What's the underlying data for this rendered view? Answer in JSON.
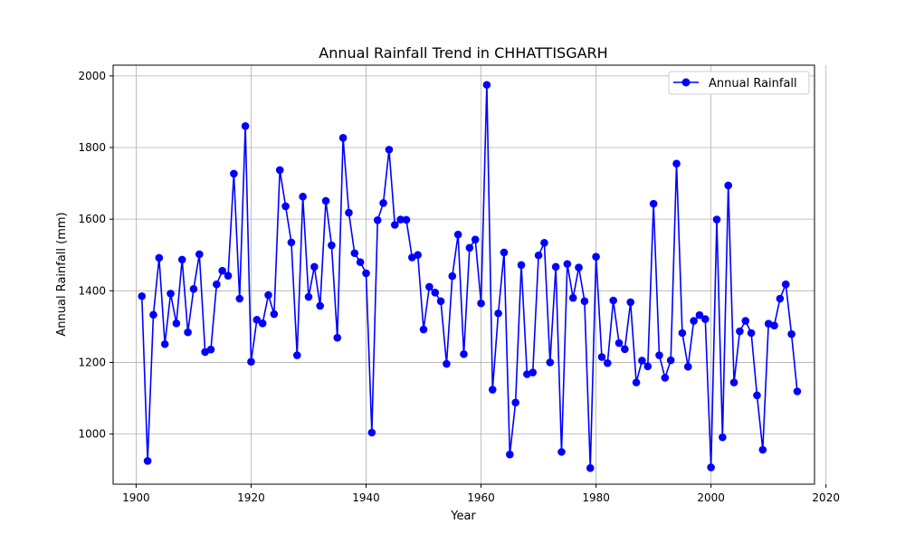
{
  "chart_data": {
    "type": "line",
    "title": "Annual Rainfall Trend in CHHATTISGARH",
    "xlabel": "Year",
    "ylabel": "Annual Rainfall (mm)",
    "xlim": [
      1896,
      2018
    ],
    "ylim": [
      860,
      2030
    ],
    "xticks": [
      1900,
      1920,
      1940,
      1960,
      1980,
      2000,
      2020
    ],
    "yticks": [
      1000,
      1200,
      1400,
      1600,
      1800,
      2000
    ],
    "grid": true,
    "legend_position": "top-right",
    "series": [
      {
        "name": "Annual Rainfall",
        "color": "#0000ff",
        "marker": "circle",
        "x": [
          1901,
          1902,
          1903,
          1904,
          1905,
          1906,
          1907,
          1908,
          1909,
          1910,
          1911,
          1912,
          1913,
          1914,
          1915,
          1916,
          1917,
          1918,
          1919,
          1920,
          1921,
          1922,
          1923,
          1924,
          1925,
          1926,
          1927,
          1928,
          1929,
          1930,
          1931,
          1932,
          1933,
          1934,
          1935,
          1936,
          1937,
          1938,
          1939,
          1940,
          1941,
          1942,
          1943,
          1944,
          1945,
          1946,
          1947,
          1948,
          1949,
          1950,
          1951,
          1952,
          1953,
          1954,
          1955,
          1956,
          1957,
          1958,
          1959,
          1960,
          1961,
          1962,
          1963,
          1964,
          1965,
          1966,
          1967,
          1968,
          1969,
          1970,
          1971,
          1972,
          1973,
          1974,
          1975,
          1976,
          1977,
          1978,
          1979,
          1980,
          1981,
          1982,
          1983,
          1984,
          1985,
          1986,
          1987,
          1988,
          1989,
          1990,
          1991,
          1992,
          1993,
          1994,
          1995,
          1996,
          1997,
          1998,
          1999,
          2000,
          2001,
          2002,
          2003,
          2004,
          2005,
          2006,
          2007,
          2008,
          2009,
          2010,
          2011,
          2012,
          2013,
          2014,
          2015
        ],
        "y": [
          1385,
          925,
          1333,
          1492,
          1251,
          1392,
          1309,
          1487,
          1284,
          1405,
          1502,
          1229,
          1236,
          1418,
          1456,
          1442,
          1727,
          1378,
          1860,
          1202,
          1319,
          1309,
          1388,
          1335,
          1737,
          1636,
          1535,
          1220,
          1663,
          1383,
          1467,
          1358,
          1651,
          1527,
          1269,
          1827,
          1618,
          1505,
          1480,
          1449,
          1004,
          1597,
          1645,
          1794,
          1584,
          1599,
          1598,
          1493,
          1500,
          1292,
          1411,
          1395,
          1371,
          1196,
          1441,
          1557,
          1223,
          1520,
          1543,
          1365,
          1975,
          1124,
          1337,
          1507,
          943,
          1088,
          1472,
          1167,
          1172,
          1499,
          1534,
          1200,
          1467,
          950,
          1475,
          1380,
          1465,
          1371,
          905,
          1495,
          1215,
          1198,
          1373,
          1254,
          1237,
          1368,
          1144,
          1205,
          1189,
          1643,
          1220,
          1157,
          1206,
          1755,
          1282,
          1188,
          1316,
          1332,
          1321,
          907,
          1599,
          991,
          1694,
          1144,
          1287,
          1316,
          1282,
          1108,
          956,
          1308,
          1303,
          1378,
          1418,
          1279,
          1119
        ]
      }
    ]
  }
}
